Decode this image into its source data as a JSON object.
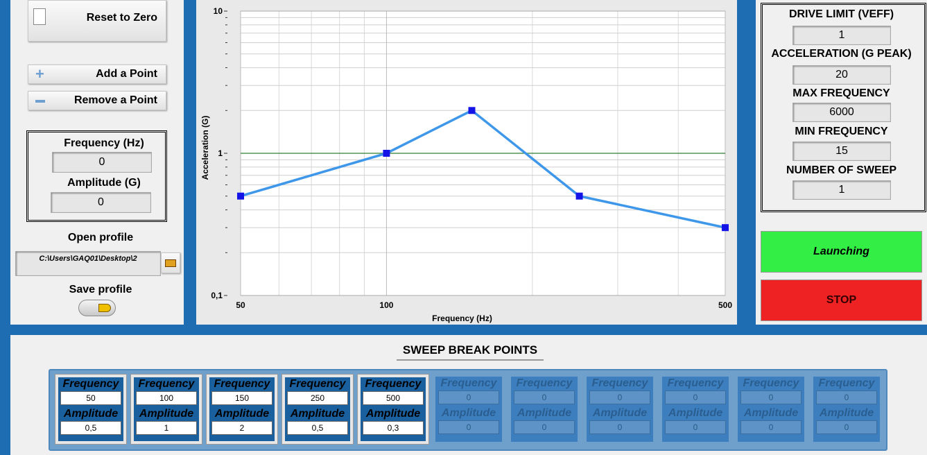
{
  "left": {
    "reset": "Reset to Zero",
    "add": "Add a Point",
    "remove": "Remove a Point",
    "frequency_label": "Frequency (Hz)",
    "frequency_value": "0",
    "amplitude_label": "Amplitude (G)",
    "amplitude_value": "0",
    "open_profile": "Open profile",
    "path": "C:\\Users\\GAQ01\\Desktop\\2",
    "save_profile": "Save profile"
  },
  "chart_data": {
    "type": "line",
    "x_label": "Frequency (Hz)",
    "y_label": "Acceleration (G)",
    "x": [
      50,
      100,
      150,
      250,
      500
    ],
    "values": [
      0.5,
      1,
      2,
      0.5,
      0.3
    ],
    "color": "#3f97ea",
    "marker_color": "#1414e6",
    "xlim": [
      50,
      500
    ],
    "ylim": [
      0.1,
      10
    ],
    "xscale": "log",
    "yscale": "log",
    "xticks": [
      50,
      100,
      500
    ],
    "yticks": [
      {
        "value": 0.1,
        "label": "0,1"
      },
      1,
      10
    ],
    "xminorticks": [
      60,
      70,
      80,
      90,
      200,
      300,
      400
    ],
    "yminorticks": [
      0.2,
      0.3,
      0.4,
      0.5,
      0.6,
      0.7,
      0.8,
      0.9,
      2,
      3,
      4,
      5,
      6,
      7,
      8,
      9
    ],
    "grid": true,
    "hline": {
      "value": 1,
      "color": "#2e7d32"
    }
  },
  "right": {
    "fields": [
      {
        "label": "DRIVE LIMIT (VEFF)",
        "value": "1"
      },
      {
        "label": "ACCELERATION (G PEAK)",
        "value": "20"
      },
      {
        "label": "MAX FREQUENCY",
        "value": "6000"
      },
      {
        "label": "MIN FREQUENCY",
        "value": "15"
      },
      {
        "label": "NUMBER OF SWEEP",
        "value": "1"
      }
    ],
    "launch": "Launching",
    "stop": "STOP"
  },
  "breakpoints": {
    "title": "SWEEP BREAK POINTS",
    "freq_label": "Frequency",
    "amp_label": "Amplitude",
    "cells": [
      {
        "frequency": "50",
        "amplitude": "0,5",
        "enabled": true
      },
      {
        "frequency": "100",
        "amplitude": "1",
        "enabled": true
      },
      {
        "frequency": "150",
        "amplitude": "2",
        "enabled": true
      },
      {
        "frequency": "250",
        "amplitude": "0,5",
        "enabled": true
      },
      {
        "frequency": "500",
        "amplitude": "0,3",
        "enabled": true
      },
      {
        "frequency": "0",
        "amplitude": "0",
        "enabled": false
      },
      {
        "frequency": "0",
        "amplitude": "0",
        "enabled": false
      },
      {
        "frequency": "0",
        "amplitude": "0",
        "enabled": false
      },
      {
        "frequency": "0",
        "amplitude": "0",
        "enabled": false
      },
      {
        "frequency": "0",
        "amplitude": "0",
        "enabled": false
      },
      {
        "frequency": "0",
        "amplitude": "0",
        "enabled": false
      }
    ]
  }
}
